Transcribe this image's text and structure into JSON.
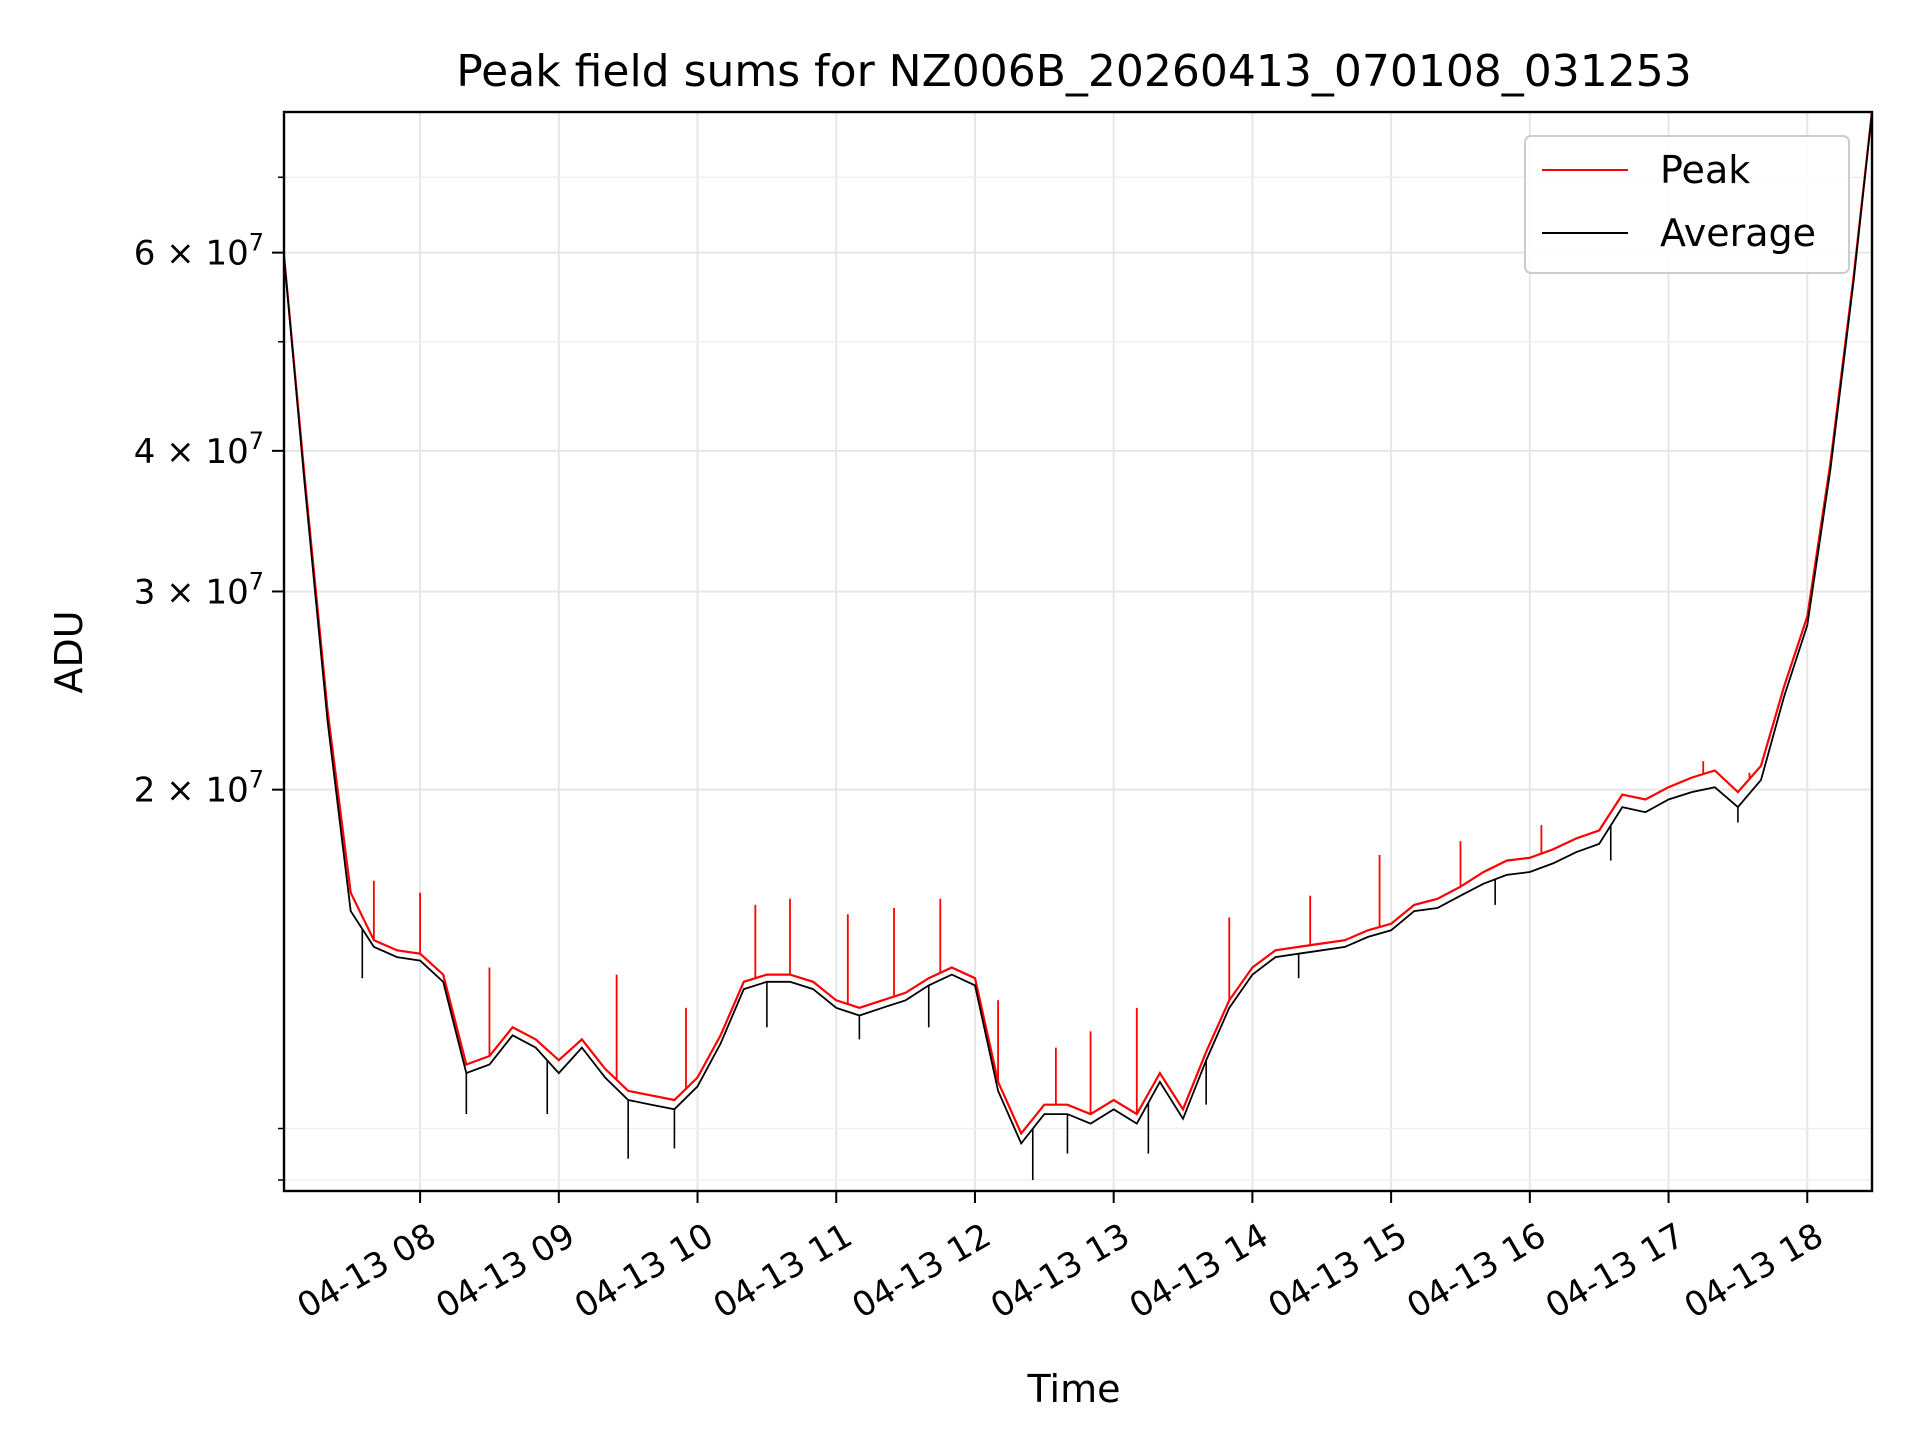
{
  "chart_data": {
    "type": "line",
    "title": "Peak field sums for NZ006B_20260413_070108_031253",
    "xlabel": "Time",
    "ylabel": "ADU",
    "yscale": "log",
    "xlim": [
      "2026-04-13T07:01:08",
      "2026-04-13T18:28:00"
    ],
    "ylim": [
      8800000,
      80000000
    ],
    "grid": true,
    "legend_position": "upper right",
    "x_ticks": [
      {
        "value": "2026-04-13T08:00",
        "label": "04-13 08"
      },
      {
        "value": "2026-04-13T09:00",
        "label": "04-13 09"
      },
      {
        "value": "2026-04-13T10:00",
        "label": "04-13 10"
      },
      {
        "value": "2026-04-13T11:00",
        "label": "04-13 11"
      },
      {
        "value": "2026-04-13T12:00",
        "label": "04-13 12"
      },
      {
        "value": "2026-04-13T13:00",
        "label": "04-13 13"
      },
      {
        "value": "2026-04-13T14:00",
        "label": "04-13 14"
      },
      {
        "value": "2026-04-13T15:00",
        "label": "04-13 15"
      },
      {
        "value": "2026-04-13T16:00",
        "label": "04-13 16"
      },
      {
        "value": "2026-04-13T17:00",
        "label": "04-13 17"
      },
      {
        "value": "2026-04-13T18:00",
        "label": "04-13 18"
      }
    ],
    "y_ticks": [
      {
        "value": 20000000,
        "mantissa": "2",
        "exponent": "7"
      },
      {
        "value": 30000000,
        "mantissa": "3",
        "exponent": "7"
      },
      {
        "value": 40000000,
        "mantissa": "4",
        "exponent": "7"
      },
      {
        "value": 60000000,
        "mantissa": "6",
        "exponent": "7"
      }
    ],
    "y_tick_times": "×10",
    "y_minor_ticks": [
      9000000,
      10000000,
      50000000,
      70000000
    ],
    "series": [
      {
        "name": "Peak",
        "color": "#ff0000",
        "x": [
          "2026-04-13T07:01",
          "2026-04-13T07:10",
          "2026-04-13T07:20",
          "2026-04-13T07:30",
          "2026-04-13T07:40",
          "2026-04-13T07:50",
          "2026-04-13T08:00",
          "2026-04-13T08:10",
          "2026-04-13T08:20",
          "2026-04-13T08:30",
          "2026-04-13T08:40",
          "2026-04-13T08:50",
          "2026-04-13T09:00",
          "2026-04-13T09:10",
          "2026-04-13T09:20",
          "2026-04-13T09:30",
          "2026-04-13T09:40",
          "2026-04-13T09:50",
          "2026-04-13T10:00",
          "2026-04-13T10:10",
          "2026-04-13T10:20",
          "2026-04-13T10:30",
          "2026-04-13T10:40",
          "2026-04-13T10:50",
          "2026-04-13T11:00",
          "2026-04-13T11:10",
          "2026-04-13T11:20",
          "2026-04-13T11:30",
          "2026-04-13T11:40",
          "2026-04-13T11:50",
          "2026-04-13T12:00",
          "2026-04-13T12:10",
          "2026-04-13T12:20",
          "2026-04-13T12:30",
          "2026-04-13T12:40",
          "2026-04-13T12:50",
          "2026-04-13T13:00",
          "2026-04-13T13:10",
          "2026-04-13T13:20",
          "2026-04-13T13:30",
          "2026-04-13T13:40",
          "2026-04-13T13:50",
          "2026-04-13T14:00",
          "2026-04-13T14:10",
          "2026-04-13T14:20",
          "2026-04-13T14:30",
          "2026-04-13T14:40",
          "2026-04-13T14:50",
          "2026-04-13T15:00",
          "2026-04-13T15:10",
          "2026-04-13T15:20",
          "2026-04-13T15:30",
          "2026-04-13T15:40",
          "2026-04-13T15:50",
          "2026-04-13T16:00",
          "2026-04-13T16:10",
          "2026-04-13T16:20",
          "2026-04-13T16:30",
          "2026-04-13T16:40",
          "2026-04-13T16:50",
          "2026-04-13T17:00",
          "2026-04-13T17:10",
          "2026-04-13T17:20",
          "2026-04-13T17:30",
          "2026-04-13T17:40",
          "2026-04-13T17:50",
          "2026-04-13T18:00",
          "2026-04-13T18:10",
          "2026-04-13T18:20",
          "2026-04-13T18:28"
        ],
        "y": [
          60000000,
          38000000,
          23500000,
          16200000,
          14700000,
          14400000,
          14300000,
          13700000,
          11400000,
          11600000,
          12300000,
          12000000,
          11500000,
          12000000,
          11300000,
          10800000,
          10700000,
          10600000,
          11100000,
          12100000,
          13500000,
          13700000,
          13700000,
          13500000,
          13000000,
          12800000,
          13000000,
          13200000,
          13600000,
          13900000,
          13600000,
          11000000,
          9900000,
          10500000,
          10500000,
          10300000,
          10600000,
          10300000,
          11200000,
          10400000,
          11700000,
          13000000,
          13900000,
          14400000,
          14500000,
          14600000,
          14700000,
          15000000,
          15200000,
          15800000,
          16000000,
          16400000,
          16900000,
          17300000,
          17400000,
          17700000,
          18100000,
          18400000,
          19800000,
          19600000,
          20100000,
          20500000,
          20800000,
          19900000,
          21000000,
          24700000,
          28500000,
          39000000,
          57000000,
          80000000
        ],
        "spikes": [
          {
            "x": "2026-04-13T07:40",
            "y": 16600000
          },
          {
            "x": "2026-04-13T08:00",
            "y": 16200000
          },
          {
            "x": "2026-04-13T08:30",
            "y": 13900000
          },
          {
            "x": "2026-04-13T09:25",
            "y": 13700000
          },
          {
            "x": "2026-04-13T09:55",
            "y": 12800000
          },
          {
            "x": "2026-04-13T10:25",
            "y": 15800000
          },
          {
            "x": "2026-04-13T10:40",
            "y": 16000000
          },
          {
            "x": "2026-04-13T11:05",
            "y": 15500000
          },
          {
            "x": "2026-04-13T11:25",
            "y": 15700000
          },
          {
            "x": "2026-04-13T11:45",
            "y": 16000000
          },
          {
            "x": "2026-04-13T12:10",
            "y": 13000000
          },
          {
            "x": "2026-04-13T12:35",
            "y": 11800000
          },
          {
            "x": "2026-04-13T12:50",
            "y": 12200000
          },
          {
            "x": "2026-04-13T13:10",
            "y": 12800000
          },
          {
            "x": "2026-04-13T13:50",
            "y": 15400000
          },
          {
            "x": "2026-04-13T14:25",
            "y": 16100000
          },
          {
            "x": "2026-04-13T14:55",
            "y": 17500000
          },
          {
            "x": "2026-04-13T15:30",
            "y": 18000000
          },
          {
            "x": "2026-04-13T16:05",
            "y": 18600000
          },
          {
            "x": "2026-04-13T16:45",
            "y": 19700000
          },
          {
            "x": "2026-04-13T17:15",
            "y": 21200000
          },
          {
            "x": "2026-04-13T17:35",
            "y": 20700000
          }
        ]
      },
      {
        "name": "Average",
        "color": "#000000",
        "x": [
          "2026-04-13T07:01",
          "2026-04-13T07:10",
          "2026-04-13T07:20",
          "2026-04-13T07:30",
          "2026-04-13T07:40",
          "2026-04-13T07:50",
          "2026-04-13T08:00",
          "2026-04-13T08:10",
          "2026-04-13T08:20",
          "2026-04-13T08:30",
          "2026-04-13T08:40",
          "2026-04-13T08:50",
          "2026-04-13T09:00",
          "2026-04-13T09:10",
          "2026-04-13T09:20",
          "2026-04-13T09:30",
          "2026-04-13T09:40",
          "2026-04-13T09:50",
          "2026-04-13T10:00",
          "2026-04-13T10:10",
          "2026-04-13T10:20",
          "2026-04-13T10:30",
          "2026-04-13T10:40",
          "2026-04-13T10:50",
          "2026-04-13T11:00",
          "2026-04-13T11:10",
          "2026-04-13T11:20",
          "2026-04-13T11:30",
          "2026-04-13T11:40",
          "2026-04-13T11:50",
          "2026-04-13T12:00",
          "2026-04-13T12:10",
          "2026-04-13T12:20",
          "2026-04-13T12:30",
          "2026-04-13T12:40",
          "2026-04-13T12:50",
          "2026-04-13T13:00",
          "2026-04-13T13:10",
          "2026-04-13T13:20",
          "2026-04-13T13:30",
          "2026-04-13T13:40",
          "2026-04-13T13:50",
          "2026-04-13T14:00",
          "2026-04-13T14:10",
          "2026-04-13T14:20",
          "2026-04-13T14:30",
          "2026-04-13T14:40",
          "2026-04-13T14:50",
          "2026-04-13T15:00",
          "2026-04-13T15:10",
          "2026-04-13T15:20",
          "2026-04-13T15:30",
          "2026-04-13T15:40",
          "2026-04-13T15:50",
          "2026-04-13T16:00",
          "2026-04-13T16:10",
          "2026-04-13T16:20",
          "2026-04-13T16:30",
          "2026-04-13T16:40",
          "2026-04-13T16:50",
          "2026-04-13T17:00",
          "2026-04-13T17:10",
          "2026-04-13T17:20",
          "2026-04-13T17:30",
          "2026-04-13T17:40",
          "2026-04-13T17:50",
          "2026-04-13T18:00",
          "2026-04-13T18:10",
          "2026-04-13T18:20",
          "2026-04-13T18:28"
        ],
        "y": [
          60000000,
          37500000,
          23000000,
          15600000,
          14500000,
          14200000,
          14100000,
          13500000,
          11200000,
          11400000,
          12100000,
          11800000,
          11200000,
          11800000,
          11100000,
          10600000,
          10500000,
          10400000,
          10900000,
          11900000,
          13300000,
          13500000,
          13500000,
          13300000,
          12800000,
          12600000,
          12800000,
          13000000,
          13400000,
          13700000,
          13400000,
          10800000,
          9700000,
          10300000,
          10300000,
          10100000,
          10400000,
          10100000,
          11000000,
          10200000,
          11500000,
          12800000,
          13700000,
          14200000,
          14300000,
          14400000,
          14500000,
          14800000,
          15000000,
          15600000,
          15700000,
          16100000,
          16500000,
          16800000,
          16900000,
          17200000,
          17600000,
          17900000,
          19300000,
          19100000,
          19600000,
          19900000,
          20100000,
          19300000,
          20400000,
          24200000,
          28000000,
          38500000,
          56500000,
          80000000
        ],
        "dips": [
          {
            "x": "2026-04-13T07:35",
            "y": 13600000
          },
          {
            "x": "2026-04-13T08:20",
            "y": 10300000
          },
          {
            "x": "2026-04-13T08:55",
            "y": 10300000
          },
          {
            "x": "2026-04-13T09:30",
            "y": 9400000
          },
          {
            "x": "2026-04-13T09:50",
            "y": 9600000
          },
          {
            "x": "2026-04-13T10:30",
            "y": 12300000
          },
          {
            "x": "2026-04-13T11:10",
            "y": 12000000
          },
          {
            "x": "2026-04-13T11:40",
            "y": 12300000
          },
          {
            "x": "2026-04-13T12:25",
            "y": 9000000
          },
          {
            "x": "2026-04-13T12:40",
            "y": 9500000
          },
          {
            "x": "2026-04-13T13:15",
            "y": 9500000
          },
          {
            "x": "2026-04-13T13:40",
            "y": 10500000
          },
          {
            "x": "2026-04-13T14:20",
            "y": 13600000
          },
          {
            "x": "2026-04-13T15:45",
            "y": 15800000
          },
          {
            "x": "2026-04-13T16:35",
            "y": 17300000
          },
          {
            "x": "2026-04-13T17:30",
            "y": 18700000
          }
        ]
      }
    ]
  }
}
